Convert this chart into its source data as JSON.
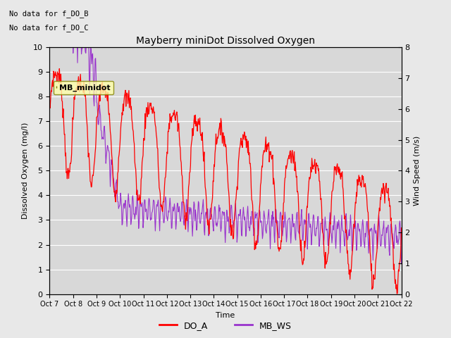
{
  "title": "Mayberry miniDot Dissolved Oxygen",
  "xlabel": "Time",
  "ylabel_left": "Dissolved Oxygen (mg/l)",
  "ylabel_right": "Wind Speed (m/s)",
  "annotation1": "No data for f_DO_B",
  "annotation2": "No data for f_DO_C",
  "legend_label": "MB_minidot",
  "ylim_left": [
    0.0,
    10.0
  ],
  "ylim_right": [
    0.0,
    8.0
  ],
  "yticks_left": [
    0.0,
    1.0,
    2.0,
    3.0,
    4.0,
    5.0,
    6.0,
    7.0,
    8.0,
    9.0,
    10.0
  ],
  "yticks_right": [
    0.0,
    1.0,
    2.0,
    3.0,
    4.0,
    5.0,
    6.0,
    7.0,
    8.0
  ],
  "xtick_labels": [
    "Oct 7",
    "Oct 8",
    "Oct 9",
    "Oct 10",
    "Oct 11",
    "Oct 12",
    "Oct 13",
    "Oct 14",
    "Oct 15",
    "Oct 16",
    "Oct 17",
    "Oct 18",
    "Oct 19",
    "Oct 20",
    "Oct 21",
    "Oct 22"
  ],
  "bg_color": "#e8e8e8",
  "plot_bg_color": "#d8d8d8",
  "line_color_do": "#ff0000",
  "line_color_ws": "#9933cc",
  "legend_line_do": "DO_A",
  "legend_line_ws": "MB_WS",
  "figwidth": 6.4,
  "figheight": 4.8,
  "dpi": 100
}
